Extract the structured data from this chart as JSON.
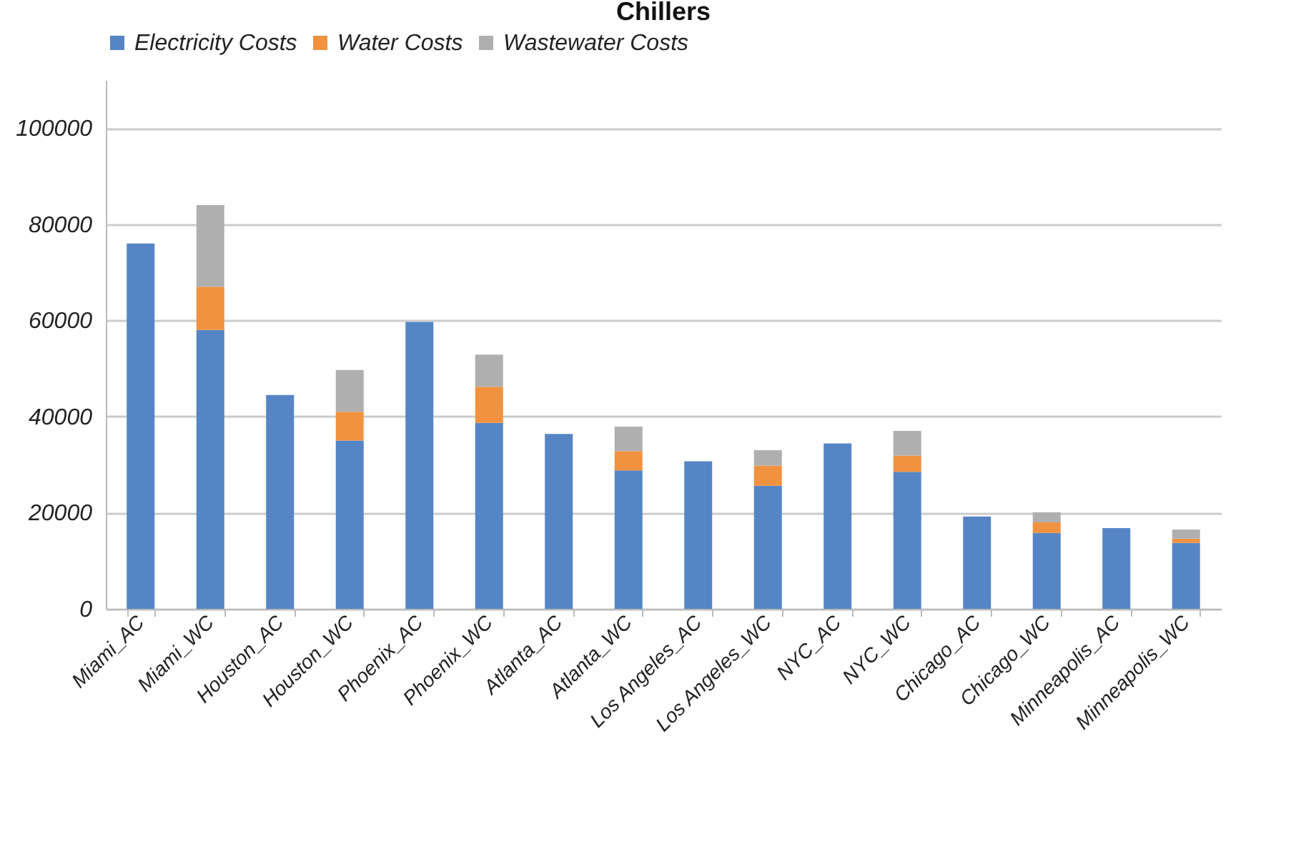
{
  "chart_data": {
    "type": "bar",
    "title": "Chillers",
    "stacked": true,
    "categories": [
      "Miami_AC",
      "Miami_WC",
      "Houston_AC",
      "Houston_WC",
      "Phoenix_AC",
      "Phoenix_WC",
      "Atlanta_AC",
      "Atlanta_WC",
      "Los Angeles_AC",
      "Los Angeles_WC",
      "NYC_AC",
      "NYC_WC",
      "Chicago_AC",
      "Chicago_WC",
      "Minneapolis_AC",
      "Minneapolis_WC"
    ],
    "series": [
      {
        "name": "Electricity Costs",
        "color": "#5585c5",
        "values": [
          76000,
          58000,
          44500,
          35000,
          59700,
          38700,
          36400,
          28800,
          30700,
          25600,
          34400,
          28500,
          19200,
          15800,
          16800,
          13700
        ]
      },
      {
        "name": "Water Costs",
        "color": "#f0923f",
        "values": [
          0,
          9000,
          0,
          6000,
          0,
          7500,
          0,
          4000,
          0,
          4200,
          0,
          3400,
          0,
          2200,
          0,
          900
        ]
      },
      {
        "name": "Wastewater Costs",
        "color": "#afafaf",
        "values": [
          0,
          17000,
          0,
          8700,
          0,
          6700,
          0,
          5100,
          0,
          3200,
          0,
          5100,
          0,
          2100,
          0,
          1900
        ]
      }
    ],
    "ylim": [
      0,
      110000
    ],
    "yticks": [
      0,
      20000,
      40000,
      60000,
      80000,
      100000
    ],
    "grid": "y",
    "legend": "top"
  }
}
